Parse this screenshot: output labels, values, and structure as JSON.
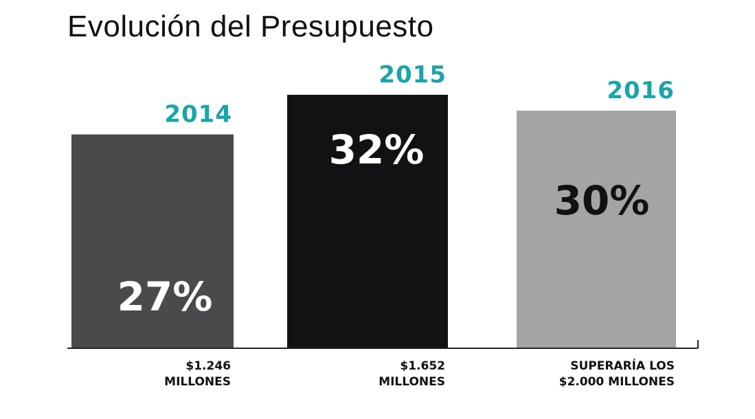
{
  "colors": {
    "year": "#1aa5a8",
    "bars": [
      "#4a4a4c",
      "#121214",
      "#a4a4a7"
    ],
    "pct_text": [
      "#ffffff",
      "#ffffff",
      "#111111"
    ],
    "baseline": "#222222"
  },
  "chart_data": {
    "type": "bar",
    "title": "Evolución del Presupuesto",
    "categories": [
      "2014",
      "2015",
      "2016"
    ],
    "values": [
      27,
      32,
      30
    ],
    "value_labels": [
      "27%",
      "32%",
      "30%"
    ],
    "notes": [
      [
        "$1.246",
        "MILLONES"
      ],
      [
        "$1.652",
        "MILLONES"
      ],
      [
        "SUPERARÍA LOS",
        "$2.000 MILLONES"
      ]
    ],
    "ylim": [
      0,
      32
    ],
    "grid": false,
    "legend": "none"
  }
}
